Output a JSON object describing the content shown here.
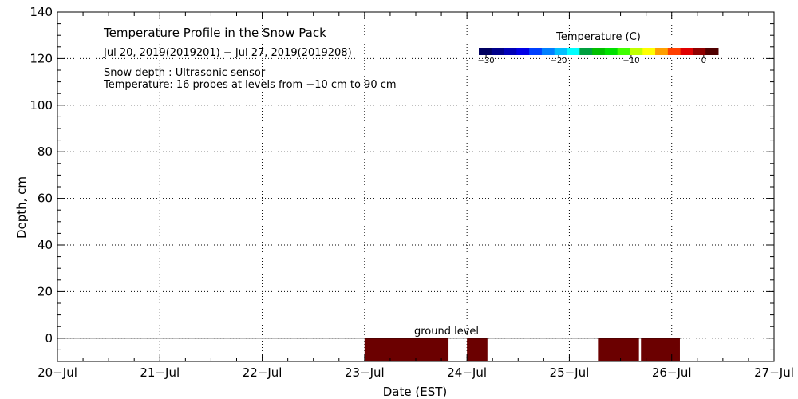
{
  "chart_data": {
    "type": "heatmap",
    "title": "Temperature Profile in the Snow Pack",
    "subtitle": "Jul 20, 2019(2019201) − Jul 27, 2019(2019208)",
    "notes": [
      "Snow depth : Ultrasonic sensor",
      "Temperature: 16 probes at levels from −10 cm to 90 cm"
    ],
    "xlabel": "Date (EST)",
    "ylabel": "Depth, cm",
    "x_ticks": [
      "20−Jul",
      "21−Jul",
      "22−Jul",
      "23−Jul",
      "24−Jul",
      "25−Jul",
      "26−Jul",
      "27−Jul"
    ],
    "xlim": [
      0,
      7
    ],
    "ylim": [
      -10,
      140
    ],
    "y_ticks": [
      0,
      20,
      40,
      60,
      80,
      100,
      120,
      140
    ],
    "grid": true,
    "ground_label": "ground level",
    "ground_level": 0,
    "ground_line_end": 6.1,
    "cells": [
      {
        "x0": 3.0,
        "x1": 3.82,
        "y0": -10,
        "y1": 0,
        "color": "#6b0000"
      },
      {
        "x0": 4.0,
        "x1": 4.2,
        "y0": -10,
        "y1": 0,
        "color": "#6b0000"
      },
      {
        "x0": 5.28,
        "x1": 5.68,
        "y0": -10,
        "y1": 0,
        "color": "#6b0000"
      },
      {
        "x0": 5.7,
        "x1": 6.08,
        "y0": -10,
        "y1": 0,
        "color": "#6b0000"
      }
    ],
    "colorbar": {
      "title": "Temperature (C)",
      "min": -31,
      "max": 2,
      "ticks": [
        "−30",
        "−20",
        "−10",
        "0"
      ],
      "tick_values": [
        -30,
        -20,
        -10,
        0
      ],
      "colors": [
        "#000060",
        "#00008a",
        "#0000b8",
        "#0000e6",
        "#0040ff",
        "#0080ff",
        "#00c0ff",
        "#00ffff",
        "#00a040",
        "#00c000",
        "#00e000",
        "#40ff00",
        "#c0ff00",
        "#ffff00",
        "#ffa000",
        "#ff4000",
        "#e00000",
        "#900000",
        "#500000"
      ]
    }
  }
}
